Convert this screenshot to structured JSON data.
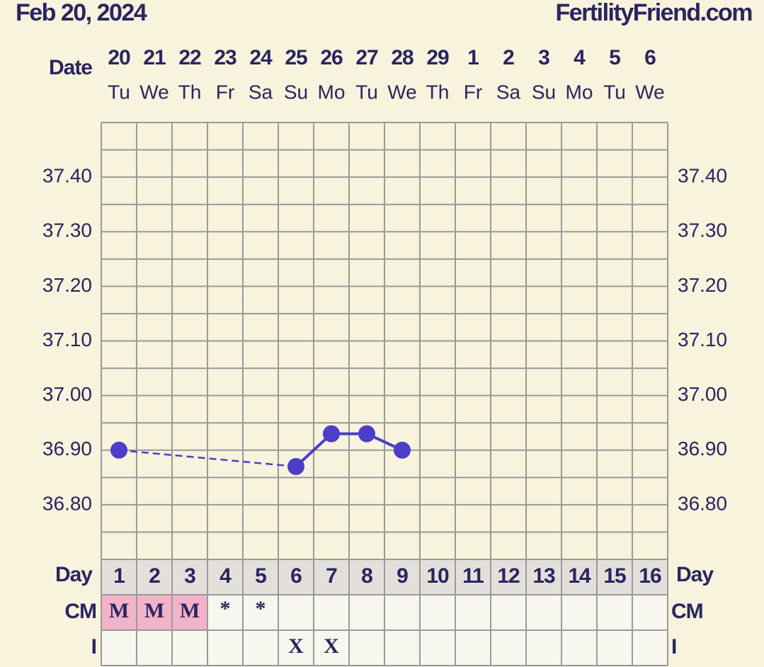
{
  "chart_data": {
    "type": "line",
    "title": "Feb 20, 2024",
    "site": "FertilityFriend.com",
    "date_label": "Date",
    "x": [
      20,
      21,
      22,
      23,
      24,
      25,
      26,
      27,
      28,
      29,
      1,
      2,
      3,
      4,
      5,
      6
    ],
    "weekdays": [
      "Tu",
      "We",
      "Th",
      "Fr",
      "Sa",
      "Su",
      "Mo",
      "Tu",
      "We",
      "Th",
      "Fr",
      "Sa",
      "Su",
      "Mo",
      "Tu",
      "We"
    ],
    "series": [
      {
        "color": "#4b3ec9",
        "values": [
          36.9,
          null,
          null,
          null,
          null,
          36.87,
          36.93,
          36.93,
          36.9,
          null,
          null,
          null,
          null,
          null,
          null,
          null
        ]
      }
    ],
    "ylim": [
      36.7,
      37.5
    ],
    "yticks": [
      {
        "value": 36.8,
        "label": "36.80"
      },
      {
        "value": 36.9,
        "label": "36.90"
      },
      {
        "value": 37.0,
        "label": "37.00"
      },
      {
        "value": 37.1,
        "label": "37.10"
      },
      {
        "value": 37.2,
        "label": "37.20"
      },
      {
        "value": 37.3,
        "label": "37.30"
      },
      {
        "value": 37.4,
        "label": "37.40"
      }
    ],
    "minor_yticks": [
      36.75,
      36.85,
      36.95,
      37.05,
      37.15,
      37.25,
      37.35,
      37.45
    ],
    "grid": true,
    "day_label": "Day",
    "days": [
      1,
      2,
      3,
      4,
      5,
      6,
      7,
      8,
      9,
      10,
      11,
      12,
      13,
      14,
      15,
      16
    ],
    "cm_label": "CM",
    "cm": [
      "M",
      "M",
      "M",
      "*",
      "*",
      null,
      null,
      null,
      null,
      null,
      null,
      null,
      null,
      null,
      null,
      null
    ],
    "i_label": "I",
    "intercourse": [
      null,
      null,
      null,
      null,
      null,
      "X",
      "X",
      null,
      null,
      null,
      null,
      null,
      null,
      null,
      null,
      null
    ]
  }
}
